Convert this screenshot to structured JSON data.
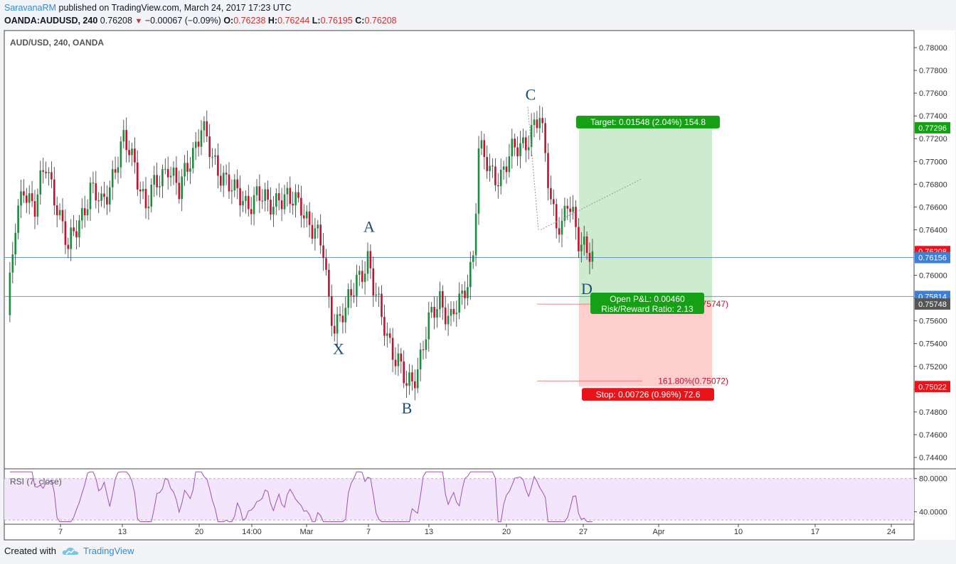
{
  "header": {
    "author": "SaravanaRM",
    "published_text": "published on TradingView.com, March 24, 2017 17:23 UTC",
    "symbol_line": "OANDA:AUDUSD, 240",
    "last_price": "0.76208",
    "change": "−0.00067 (−0.09%)",
    "o_label": "O:",
    "o_value": "0.76238",
    "h_label": "H:",
    "h_value": "0.76244",
    "l_label": "L:",
    "l_value": "0.76195",
    "c_label": "C:",
    "c_value": "0.76208"
  },
  "footer": {
    "created_with": "Created with",
    "brand": "TradingView"
  },
  "colors": {
    "up": "#1c8d3e",
    "down": "#c8102e",
    "target_fill": "#cdeccf",
    "stop_fill": "#fccfce",
    "target_label": "#16a016",
    "stop_label": "#e8141a",
    "hline": "#6f93d6",
    "rsi_bg": "#f3e5fb",
    "rsi_line": "#9c53b5"
  },
  "chart_data": {
    "type": "candlestick",
    "title": "AUD/USD, 240, OANDA",
    "ylim": [
      0.743,
      0.7815
    ],
    "y_ticks": [
      "0.78000",
      "0.77800",
      "0.77600",
      "0.77400",
      "0.77200",
      "0.77000",
      "0.76800",
      "0.76600",
      "0.76400",
      "0.76200",
      "0.76000",
      "0.75800",
      "0.75600",
      "0.75400",
      "0.75200",
      "0.75000",
      "0.74800",
      "0.74600",
      "0.74400"
    ],
    "x_ticks": [
      "7",
      "13",
      "20",
      "14:00",
      "Mar",
      "7",
      "13",
      "20",
      "27",
      "Apr",
      "10",
      "17",
      "24"
    ],
    "pattern_points": [
      {
        "label": "X",
        "low": 0.7547
      },
      {
        "label": "A",
        "high": 0.7632
      },
      {
        "label": "B",
        "low": 0.7495
      },
      {
        "label": "C",
        "high": 0.7748
      },
      {
        "label": "D",
        "level": 0.7581
      }
    ],
    "ohlc_anchors": [
      {
        "bar": 0,
        "price": 0.7565
      },
      {
        "bar": 3,
        "price": 0.764
      },
      {
        "bar": 6,
        "price": 0.768
      },
      {
        "bar": 10,
        "price": 0.766
      },
      {
        "bar": 14,
        "price": 0.7695
      },
      {
        "bar": 18,
        "price": 0.7665
      },
      {
        "bar": 22,
        "price": 0.762
      },
      {
        "bar": 26,
        "price": 0.765
      },
      {
        "bar": 30,
        "price": 0.7675
      },
      {
        "bar": 34,
        "price": 0.766
      },
      {
        "bar": 38,
        "price": 0.769
      },
      {
        "bar": 42,
        "price": 0.7715
      },
      {
        "bar": 46,
        "price": 0.77
      },
      {
        "bar": 50,
        "price": 0.766
      },
      {
        "bar": 54,
        "price": 0.768
      },
      {
        "bar": 58,
        "price": 0.77
      },
      {
        "bar": 62,
        "price": 0.767
      },
      {
        "bar": 66,
        "price": 0.7705
      },
      {
        "bar": 70,
        "price": 0.773
      },
      {
        "bar": 74,
        "price": 0.77
      },
      {
        "bar": 78,
        "price": 0.769
      },
      {
        "bar": 82,
        "price": 0.767
      },
      {
        "bar": 86,
        "price": 0.7665
      },
      {
        "bar": 90,
        "price": 0.767
      },
      {
        "bar": 94,
        "price": 0.766
      },
      {
        "bar": 98,
        "price": 0.7672
      },
      {
        "bar": 102,
        "price": 0.7662
      },
      {
        "bar": 106,
        "price": 0.7665
      },
      {
        "bar": 110,
        "price": 0.764
      },
      {
        "bar": 114,
        "price": 0.762
      },
      {
        "bar": 116,
        "price": 0.758
      },
      {
        "bar": 118,
        "price": 0.7558
      },
      {
        "bar": 122,
        "price": 0.7565
      },
      {
        "bar": 126,
        "price": 0.76
      },
      {
        "bar": 130,
        "price": 0.7612
      },
      {
        "bar": 132,
        "price": 0.7585
      },
      {
        "bar": 136,
        "price": 0.756
      },
      {
        "bar": 140,
        "price": 0.7525
      },
      {
        "bar": 144,
        "price": 0.7503
      },
      {
        "bar": 148,
        "price": 0.752
      },
      {
        "bar": 152,
        "price": 0.7555
      },
      {
        "bar": 156,
        "price": 0.7582
      },
      {
        "bar": 160,
        "price": 0.756
      },
      {
        "bar": 164,
        "price": 0.7578
      },
      {
        "bar": 168,
        "price": 0.762
      },
      {
        "bar": 170,
        "price": 0.771
      },
      {
        "bar": 174,
        "price": 0.769
      },
      {
        "bar": 178,
        "price": 0.769
      },
      {
        "bar": 182,
        "price": 0.7705
      },
      {
        "bar": 186,
        "price": 0.7718
      },
      {
        "bar": 190,
        "price": 0.773
      },
      {
        "bar": 192,
        "price": 0.7735
      },
      {
        "bar": 194,
        "price": 0.7705
      },
      {
        "bar": 196,
        "price": 0.767
      },
      {
        "bar": 198,
        "price": 0.765
      },
      {
        "bar": 200,
        "price": 0.764
      },
      {
        "bar": 202,
        "price": 0.766
      },
      {
        "bar": 204,
        "price": 0.765
      },
      {
        "bar": 206,
        "price": 0.7635
      },
      {
        "bar": 208,
        "price": 0.763
      },
      {
        "bar": 210,
        "price": 0.7618
      },
      {
        "bar": 211,
        "price": 0.7621
      }
    ],
    "price_lines": [
      0.76156,
      0.75814
    ],
    "position": {
      "entry": 0.75748,
      "target": 0.77296,
      "stop": 0.75022,
      "target_label": "Target: 0.01548 (2.04%) 154.8",
      "stop_label": "Stop: 0.00726 (0.96%) 72.6",
      "pnl_label": "Open P&L: 0.00460",
      "rr_label": "Risk/Reward Ratio: 2.13"
    },
    "fib_labels": [
      {
        "text": "(0.75747)",
        "price": 0.75747
      },
      {
        "text": "161.80%(0.75072)",
        "price": 0.75072
      }
    ],
    "price_badges": [
      {
        "text": "0.77296",
        "bg": "#16a016"
      },
      {
        "text": "0.76208",
        "bg": "#e8141a"
      },
      {
        "text": "0.76156",
        "bg": "#3d7fd6"
      },
      {
        "text": "0.75814",
        "bg": "#3d7fd6"
      },
      {
        "text": "0.75748",
        "bg": "#555555"
      },
      {
        "text": "0.75022",
        "bg": "#e8141a"
      }
    ],
    "rsi": {
      "label": "RSI (7, close)",
      "ylim": [
        25,
        90
      ],
      "y_ticks": [
        "80.0000",
        "40.0000"
      ],
      "band": [
        30,
        80
      ]
    }
  }
}
